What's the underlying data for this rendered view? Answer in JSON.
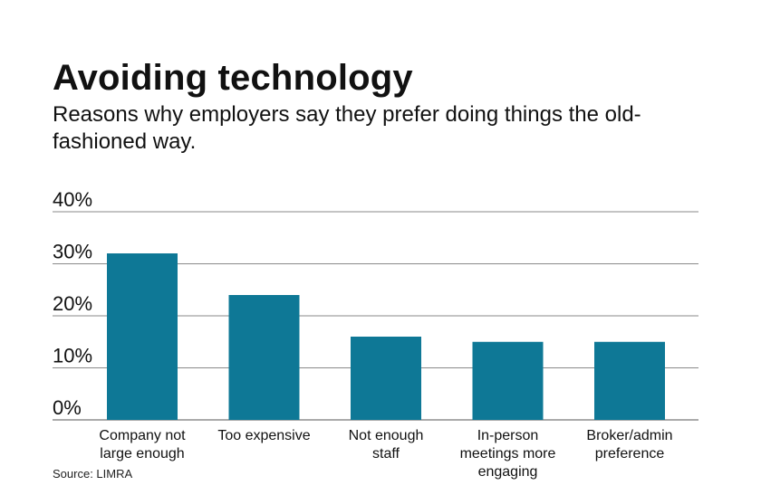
{
  "chart_data": {
    "type": "bar",
    "title": "Avoiding technology",
    "subtitle": "Reasons why employers say they prefer doing things the old-fashioned way.",
    "categories": [
      [
        "Company not",
        "large enough"
      ],
      [
        "Too expensive"
      ],
      [
        "Not enough",
        "staff"
      ],
      [
        "In-person",
        "meetings more",
        "engaging"
      ],
      [
        "Broker/admin",
        "preference"
      ]
    ],
    "values": [
      32,
      24,
      16,
      15,
      15
    ],
    "yticks": [
      "0%",
      "10%",
      "20%",
      "30%",
      "40%"
    ],
    "ylim": [
      0,
      40
    ],
    "grid": true,
    "bar_color": "#0e7896",
    "source": "Source: LIMRA"
  }
}
